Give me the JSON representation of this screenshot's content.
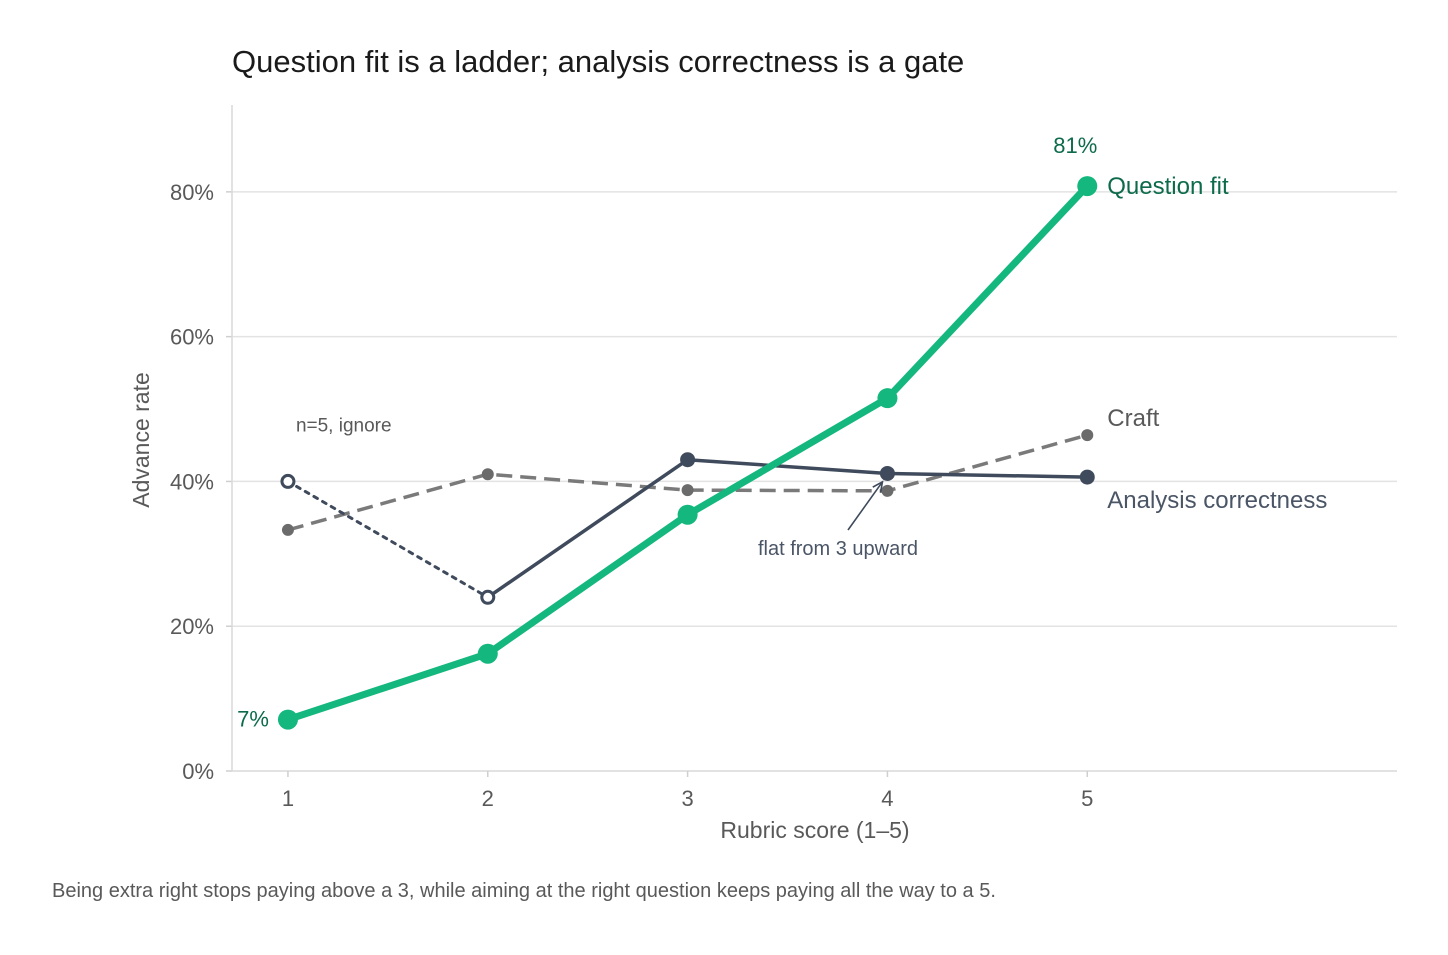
{
  "chart_data": {
    "type": "line",
    "title": "Question fit is a ladder; analysis correctness is a gate",
    "caption": "Being extra right stops paying above a 3, while aiming at the right question keeps paying all the way to a 5.",
    "xlabel": "Rubric score (1–5)",
    "ylabel": "Advance rate",
    "x": [
      1,
      2,
      3,
      4,
      5
    ],
    "x_ticks": [
      "1",
      "2",
      "3",
      "4",
      "5"
    ],
    "y_ticks": [
      "0%",
      "20%",
      "40%",
      "60%",
      "80%"
    ],
    "y_tick_values": [
      0,
      20,
      40,
      60,
      80
    ],
    "ylim": [
      0,
      92
    ],
    "xlim": [
      0.72,
      6.55
    ],
    "grid": "horizontal",
    "legend": "direct labels at line ends",
    "series": [
      {
        "name": "Question fit",
        "values": [
          7.1,
          16.2,
          35.4,
          51.5,
          80.8
        ],
        "color": "#14b77e",
        "label_color": "#0d6b4c",
        "style": "solid-bold",
        "end_labels": {
          "first": "7%",
          "last": "81%"
        }
      },
      {
        "name": "Craft",
        "values": [
          33.3,
          41.0,
          38.8,
          38.7,
          46.4
        ],
        "color": "#7a7a7a",
        "label_color": "#595959",
        "style": "dashed"
      },
      {
        "name": "Analysis correctness",
        "values": [
          40.0,
          24.0,
          43.0,
          41.1,
          40.6
        ],
        "color": "#3f4b5c",
        "label_color": "#4a5566",
        "style": "solid",
        "low_n_points": [
          1,
          2
        ],
        "low_n_note": "n=5, ignore"
      }
    ],
    "annotations": [
      {
        "text": "flat from 3 upward",
        "points_to_x": 4,
        "points_to_y": 38.7
      }
    ]
  }
}
